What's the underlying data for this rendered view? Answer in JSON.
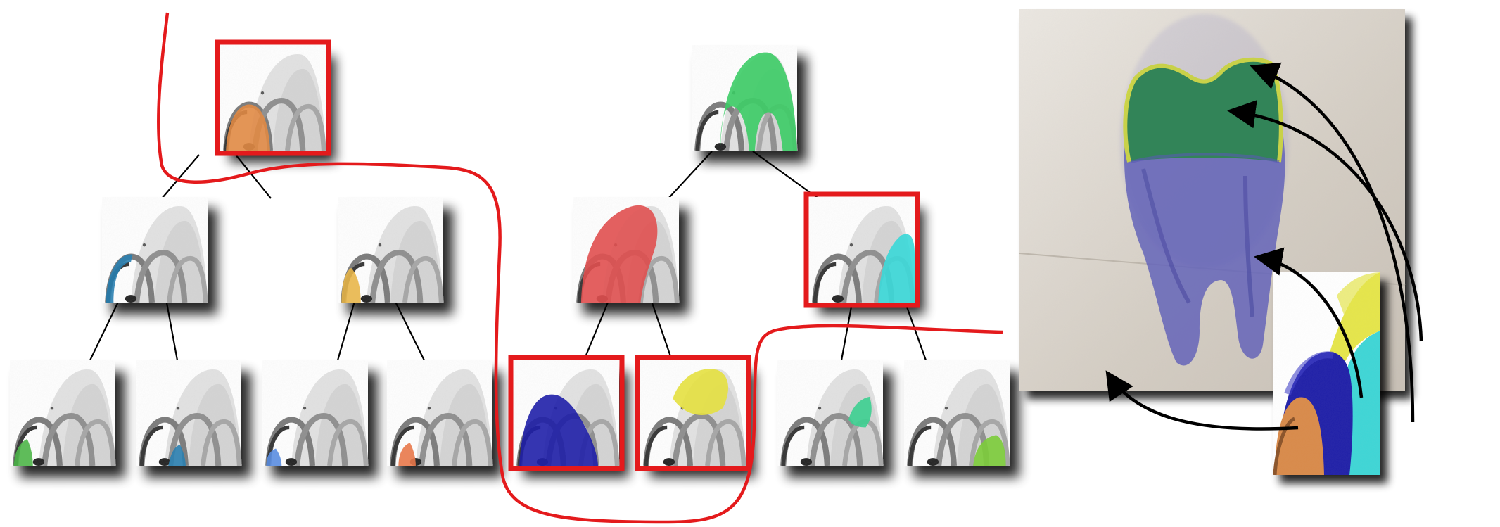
{
  "colors": {
    "background": "#ffffff",
    "selection": "#e41a1c",
    "edge": "#000000",
    "arrow": "#000000",
    "histogram": "#9a9a9a",
    "histogram_dark": "#444444",
    "wall": "#d8d1c8",
    "tooth_body": "#5b5bb8",
    "tooth_crown": "#2d8a4a",
    "tooth_rim": "#d8e23a"
  },
  "left_tree": {
    "nodes": [
      {
        "id": "L-root",
        "level": 0,
        "selected": true,
        "highlight": "#e08a45",
        "region": "first-arch"
      },
      {
        "id": "L-1",
        "level": 1,
        "selected": false,
        "highlight": "#2a7fb0",
        "region": "first-arch-edge"
      },
      {
        "id": "L-2",
        "level": 1,
        "selected": false,
        "highlight": "#e8b64a",
        "region": "second-arch-edge"
      },
      {
        "id": "L-1a",
        "level": 2,
        "selected": false,
        "highlight": "#4cb548",
        "region": "first-arch-foot"
      },
      {
        "id": "L-1b",
        "level": 2,
        "selected": false,
        "highlight": "#2a7fb0",
        "region": "second-arch-foot"
      },
      {
        "id": "L-2a",
        "level": 2,
        "selected": false,
        "highlight": "#5a8de0",
        "region": "first-arch-inner"
      },
      {
        "id": "L-2b",
        "level": 2,
        "selected": false,
        "highlight": "#e8784a",
        "region": "second-arch-inner"
      }
    ]
  },
  "right_tree": {
    "nodes": [
      {
        "id": "R-root",
        "level": 0,
        "selected": false,
        "highlight": "#3dcc66",
        "region": "all-arches"
      },
      {
        "id": "R-1",
        "level": 1,
        "selected": false,
        "highlight": "#e05050",
        "region": "left-cloud"
      },
      {
        "id": "R-2",
        "level": 1,
        "selected": true,
        "highlight": "#3ad8d8",
        "region": "third-arch"
      },
      {
        "id": "R-1a",
        "level": 2,
        "selected": true,
        "highlight": "#2020a8",
        "region": "lower-cloud"
      },
      {
        "id": "R-1b",
        "level": 2,
        "selected": true,
        "highlight": "#e4e040",
        "region": "upper-cloud"
      },
      {
        "id": "R-2a",
        "level": 2,
        "selected": false,
        "highlight": "#3ccf90",
        "region": "third-arch-top"
      },
      {
        "id": "R-2b",
        "level": 2,
        "selected": false,
        "highlight": "#7ccc3a",
        "region": "third-arch-foot"
      }
    ]
  },
  "composite_legend": {
    "segments": [
      {
        "name": "orange",
        "color": "#d98a4a"
      },
      {
        "name": "blue",
        "color": "#2020a8"
      },
      {
        "name": "yellow",
        "color": "#e6e64a"
      },
      {
        "name": "cyan",
        "color": "#3ed6d6"
      }
    ]
  },
  "volume_rendering": {
    "subject": "tooth",
    "layers": [
      "crown",
      "rim",
      "root"
    ]
  }
}
